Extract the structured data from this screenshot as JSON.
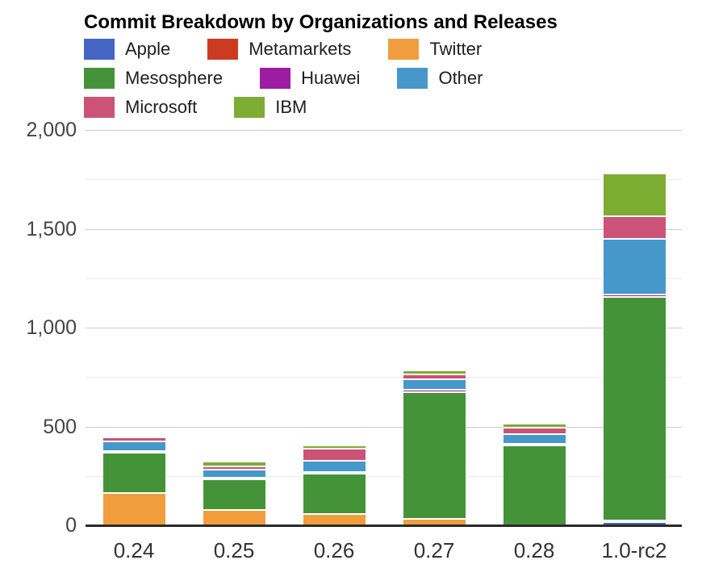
{
  "title": "Commit Breakdown by Organizations and Releases",
  "chart_data": {
    "type": "bar",
    "stacked": true,
    "title": "Commit Breakdown by Organizations and Releases",
    "xlabel": "",
    "ylabel": "",
    "categories": [
      "0.24",
      "0.25",
      "0.26",
      "0.27",
      "0.28",
      "1.0-rc2"
    ],
    "series": [
      {
        "name": "Apple",
        "color": "#4365c4",
        "values": [
          0,
          0,
          0,
          0,
          0,
          14
        ]
      },
      {
        "name": "Metamarkets",
        "color": "#cd3a22",
        "values": [
          0,
          0,
          0,
          0,
          0,
          0
        ]
      },
      {
        "name": "Twitter",
        "color": "#f09d3e",
        "values": [
          160,
          72,
          52,
          27,
          0,
          7
        ]
      },
      {
        "name": "Mesosphere",
        "color": "#459339",
        "values": [
          205,
          158,
          204,
          642,
          402,
          1130
        ]
      },
      {
        "name": "Huawei",
        "color": "#9d1ca3",
        "values": [
          7,
          8,
          11,
          11,
          7,
          11
        ]
      },
      {
        "name": "Other",
        "color": "#4698ca",
        "values": [
          47,
          40,
          56,
          54,
          47,
          282
        ]
      },
      {
        "name": "Microsoft",
        "color": "#cc5278",
        "values": [
          20,
          16,
          59,
          24,
          33,
          113
        ]
      },
      {
        "name": "IBM",
        "color": "#7dac33",
        "values": [
          10,
          24,
          17,
          22,
          21,
          218
        ]
      }
    ],
    "totals_approx": [
      449,
      318,
      399,
      780,
      510,
      1775
    ],
    "ylim": [
      0,
      2000
    ],
    "ytick_minor_step": 250,
    "ytick_major_step": 500,
    "ytick_labels": {
      "0": "0",
      "500": "500",
      "1000": "1,000",
      "1500": "1,500",
      "2000": "2,000"
    },
    "grid": true,
    "legend_position": "top-left",
    "legend_rows": [
      [
        "Apple",
        "Metamarkets",
        "Twitter"
      ],
      [
        "Mesosphere",
        "Huawei",
        "Other"
      ],
      [
        "Microsoft",
        "IBM"
      ]
    ],
    "style": {
      "axis_color": "#2a2a2a",
      "major_grid_color": "#cccccc",
      "minor_grid_color": "#ebebeb",
      "y_label_color": "#444444",
      "x_label_color": "#333333",
      "title_color": "#000000",
      "background": "#ffffff"
    }
  }
}
